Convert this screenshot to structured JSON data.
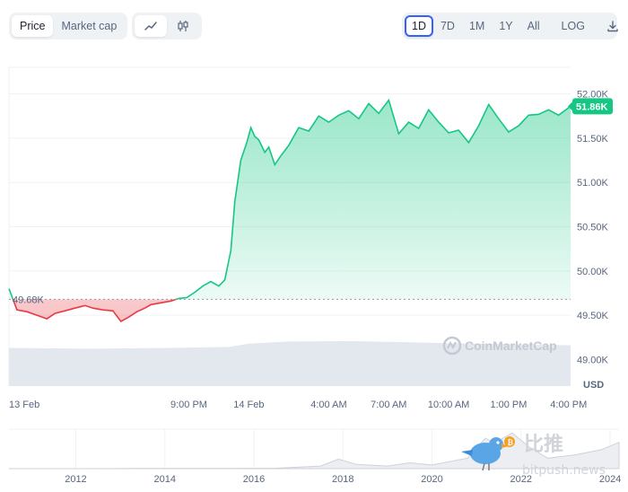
{
  "toolbar": {
    "metric_tabs": [
      {
        "label": "Price",
        "active": true
      },
      {
        "label": "Market cap",
        "active": false
      }
    ],
    "chart_types": [
      {
        "icon": "line-chart-icon",
        "active": true
      },
      {
        "icon": "candlestick-icon",
        "active": false
      }
    ],
    "ranges": [
      {
        "label": "1D",
        "active": true
      },
      {
        "label": "7D",
        "active": false
      },
      {
        "label": "1M",
        "active": false
      },
      {
        "label": "1Y",
        "active": false
      },
      {
        "label": "All",
        "active": false
      }
    ],
    "log_label": "LOG",
    "download_icon": "download-icon"
  },
  "colors": {
    "up": "#16c784",
    "down": "#ea3943",
    "accent": "#3861fb",
    "grid": "#eff2f5",
    "axis_text": "#58667e"
  },
  "watermarks": {
    "cmc": "CoinMarketCap",
    "site_cn": "比推",
    "site_url": "bitpush.news"
  },
  "chart_data": {
    "type": "line",
    "currency_label": "USD",
    "y_ticks": [
      "52.00K",
      "51.50K",
      "51.00K",
      "50.50K",
      "50.00K",
      "49.50K",
      "49.00K"
    ],
    "y_tick_values": [
      52000,
      51500,
      51000,
      50500,
      50000,
      49500,
      49000
    ],
    "ylim": [
      48700,
      52300
    ],
    "x_ticks": [
      "13 Feb",
      "9:00 PM",
      "14 Feb",
      "4:00 AM",
      "7:00 AM",
      "10:00 AM",
      "1:00 PM",
      "4:00 PM"
    ],
    "x_tick_hours": [
      0,
      9,
      12,
      16,
      19,
      22,
      25,
      28
    ],
    "xlim_hours": [
      0,
      28.1
    ],
    "reference_value": 49680,
    "reference_label": "49.68K",
    "current_label": "51.86K",
    "series": [
      {
        "hours": [
          0,
          0.4,
          0.9,
          1.4,
          1.9,
          2.3,
          2.8,
          3.3,
          3.8,
          4.2,
          4.7,
          5.2,
          5.6,
          6.0,
          6.4,
          6.8,
          7.1,
          7.6,
          8.1,
          8.5,
          8.9,
          9.3,
          9.7,
          10.1,
          10.5,
          10.8,
          11.1,
          11.3,
          11.6,
          11.9,
          12.1,
          12.3,
          12.5,
          12.8,
          13.0,
          13.3,
          13.6,
          14.0,
          14.5,
          15.0,
          15.5,
          16.0,
          16.5,
          17.0,
          17.5,
          18.0,
          18.5,
          19.0,
          19.5,
          20.0,
          20.5,
          21.0,
          21.5,
          22.0,
          22.5,
          23.0,
          23.5,
          24.0,
          24.5,
          25.0,
          25.5,
          26.0,
          26.5,
          27.0,
          27.5,
          28.1
        ],
        "values": [
          49800,
          49560,
          49540,
          49500,
          49460,
          49520,
          49550,
          49580,
          49610,
          49580,
          49560,
          49550,
          49430,
          49480,
          49540,
          49580,
          49620,
          49640,
          49660,
          49690,
          49700,
          49760,
          49830,
          49880,
          49830,
          49900,
          50230,
          50780,
          51250,
          51450,
          51620,
          51520,
          51480,
          51340,
          51400,
          51200,
          51300,
          51420,
          51620,
          51580,
          51750,
          51680,
          51760,
          51810,
          51720,
          51890,
          51780,
          51930,
          51550,
          51680,
          51610,
          51820,
          51680,
          51560,
          51590,
          51450,
          51640,
          51880,
          51720,
          51570,
          51640,
          51760,
          51770,
          51820,
          51760,
          51860
        ]
      }
    ],
    "volume": {
      "hours": [
        0,
        4,
        8,
        11,
        12,
        14,
        17,
        20,
        23,
        26,
        28.1
      ],
      "values": [
        0.9,
        0.88,
        0.9,
        0.92,
        1.0,
        1.05,
        1.06,
        1.03,
        1.0,
        0.98,
        0.96
      ]
    },
    "navigator": {
      "x_ticks": [
        "2012",
        "2014",
        "2016",
        "2018",
        "2020",
        "2022",
        "2024"
      ],
      "x_tick_years": [
        2012,
        2014,
        2016,
        2018,
        2020,
        2022,
        2024
      ],
      "xlim_years": [
        2010.5,
        2024.2
      ],
      "years": [
        2010.5,
        2012,
        2013.5,
        2015,
        2016.5,
        2017.5,
        2017.9,
        2018.3,
        2019,
        2019.5,
        2020,
        2020.8,
        2021.2,
        2021.4,
        2021.8,
        2022.2,
        2022.6,
        2023.2,
        2023.8,
        2024.2
      ],
      "values": [
        0,
        0,
        0.5,
        0.3,
        0.8,
        5,
        18,
        8,
        5,
        11,
        7,
        20,
        58,
        48,
        68,
        40,
        20,
        26,
        36,
        50
      ]
    }
  }
}
